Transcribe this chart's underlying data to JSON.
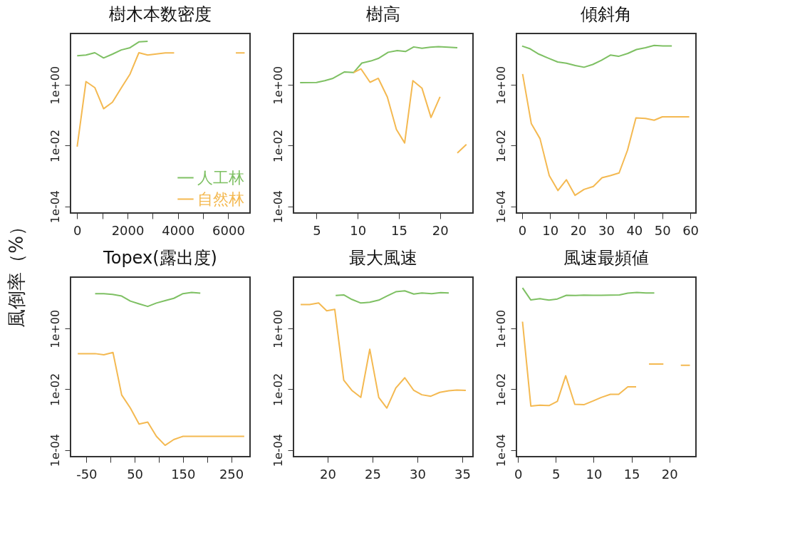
{
  "chart_data": [
    {
      "type": "line",
      "title": "樹木本数密度",
      "ylabel": "風倒率（%）",
      "log": "y",
      "grid": false,
      "legend": "bottom right",
      "xlim": [
        -264,
        6864
      ],
      "ylim": [
        6e-05,
        50
      ],
      "xticks": [
        0,
        {
          "value": 1000,
          "label": null
        },
        2000,
        {
          "value": 3000,
          "label": null
        },
        4000,
        {
          "value": 5000,
          "label": null
        },
        6000
      ],
      "yticks": [
        {
          "value": 0.0001,
          "label": "1e-04"
        },
        {
          "value": 0.01,
          "label": "1e-02"
        },
        {
          "value": 1,
          "label": "1e+00"
        }
      ],
      "series": [
        {
          "name": "人工林",
          "color": "#7ec063",
          "x": [
            0,
            350,
            700,
            1050,
            1400,
            1750,
            2100,
            2450,
            2800
          ],
          "values": [
            9.2,
            9.7,
            11.6,
            7.8,
            10.4,
            14.3,
            17,
            26.4,
            27.4
          ]
        },
        {
          "name": "自然林",
          "color": "#f4b951",
          "x": [
            0,
            350,
            700,
            1050,
            1400,
            1750,
            2100,
            2450,
            2800,
            3150,
            3500,
            3850,
            4200,
            6300,
            6650
          ],
          "values": [
            0.0092,
            1.3,
            0.82,
            0.165,
            0.27,
            0.8,
            2.3,
            11.6,
            9.7,
            10.6,
            11.4,
            11.4,
            null,
            11.4,
            11.4
          ]
        }
      ]
    },
    {
      "type": "line",
      "title": "樹高",
      "log": "y",
      "grid": false,
      "xlim": [
        2.2,
        24
      ],
      "ylim": [
        6e-05,
        50
      ],
      "xticks": [
        5,
        10,
        15,
        20
      ],
      "yticks": [
        {
          "value": 0.0001,
          "label": "1e-04"
        },
        {
          "value": 0.01,
          "label": "1e-02"
        },
        {
          "value": 1,
          "label": "1e+00"
        }
      ],
      "series": [
        {
          "color": "#7ec063",
          "x": [
            3.0,
            5.0,
            6.0,
            7.0,
            8.4,
            9.5,
            10.5,
            11.6,
            12.5,
            13.7,
            14.8,
            15.8,
            16.8,
            17.8,
            18.8,
            19.8,
            21.0,
            22.1
          ],
          "values": [
            1.19,
            1.21,
            1.39,
            1.66,
            2.7,
            2.57,
            5.3,
            6.2,
            7.5,
            12,
            13.6,
            12.7,
            18,
            16.2,
            17.7,
            18.3,
            17.7,
            17
          ]
        },
        {
          "color": "#f4b951",
          "x": [
            9.5,
            10.4,
            11.5,
            12.5,
            13.6,
            14.7,
            15.7,
            16.7,
            17.8,
            18.9,
            20.0,
            21.0,
            22.1,
            23.2
          ],
          "values": [
            2.57,
            3.4,
            1.23,
            1.66,
            0.4,
            0.034,
            0.0123,
            1.39,
            0.79,
            0.085,
            0.41,
            null,
            0.0057,
            0.011
          ]
        }
      ]
    },
    {
      "type": "line",
      "title": "傾斜角",
      "log": "y",
      "grid": false,
      "xlim": [
        -2,
        62
      ],
      "ylim": [
        6e-05,
        50
      ],
      "xticks": [
        0,
        10,
        20,
        30,
        40,
        50,
        60
      ],
      "yticks": [
        {
          "value": 0.0001,
          "label": "1e-04"
        },
        {
          "value": 0.01,
          "label": "1e-02"
        },
        {
          "value": 1,
          "label": "1e+00"
        }
      ],
      "series": [
        {
          "color": "#7ec063",
          "x": [
            0,
            2.9,
            6,
            9.2,
            12.7,
            15.8,
            19,
            22.1,
            25.2,
            28.3,
            31.5,
            34.4,
            37.7,
            40.8,
            44,
            47.1,
            50.2,
            53.4
          ],
          "values": [
            19.3,
            15.6,
            10.4,
            7.8,
            5.75,
            5.2,
            4.4,
            3.85,
            4.75,
            6.5,
            9.7,
            8.8,
            11,
            14.8,
            17,
            20.3,
            19.3,
            19.3
          ]
        },
        {
          "color": "#f4b951",
          "x": [
            0.2,
            3.3,
            6.4,
            9.7,
            12.8,
            15.8,
            18.9,
            22.1,
            25.4,
            28.5,
            31.5,
            34.6,
            37.6,
            40.6,
            44,
            47.1,
            50,
            53.4,
            59.6
          ],
          "values": [
            2.3,
            0.053,
            0.017,
            0.00103,
            0.00033,
            0.00075,
            0.00023,
            0.00036,
            0.00045,
            0.00087,
            0.00103,
            0.00126,
            0.0071,
            0.082,
            0.079,
            0.069,
            0.089,
            0.089,
            0.089
          ]
        }
      ]
    },
    {
      "type": "line",
      "title": "Topex(露出度)",
      "log": "y",
      "grid": false,
      "xlim": [
        -83,
        289
      ],
      "ylim": [
        6e-05,
        50
      ],
      "xticks": [
        -50,
        {
          "value": 0,
          "label": null
        },
        50,
        {
          "value": 100,
          "label": null
        },
        150,
        {
          "value": 200,
          "label": null
        },
        250
      ],
      "yticks": [
        {
          "value": 0.0001,
          "label": "1e-04"
        },
        {
          "value": 0.01,
          "label": "1e-02"
        },
        {
          "value": 1,
          "label": "1e+00"
        }
      ],
      "series": [
        {
          "color": "#7ec063",
          "x": [
            -32,
            -14,
            4,
            23,
            41,
            59,
            77,
            95,
            113,
            131,
            150,
            168,
            186
          ],
          "values": [
            14.3,
            14.3,
            13.5,
            11.9,
            8.1,
            6.6,
            5.4,
            7.0,
            8.4,
            10,
            14.3,
            15.6,
            14.8
          ]
        },
        {
          "color": "#f4b951",
          "x": [
            -68,
            -50,
            -32,
            -14,
            5,
            23,
            41,
            59,
            77,
            95,
            113,
            131,
            150,
            186,
            222,
            258,
            277
          ],
          "values": [
            0.15,
            0.15,
            0.15,
            0.138,
            0.164,
            0.0065,
            0.0024,
            0.00071,
            0.00083,
            0.00028,
            0.000142,
            0.00022,
            0.00028,
            0.00028,
            0.00028,
            0.00028,
            0.00028
          ]
        }
      ]
    },
    {
      "type": "line",
      "title": "最大風速",
      "log": "y",
      "grid": false,
      "xlim": [
        16.2,
        36.2
      ],
      "ylim": [
        6e-05,
        50
      ],
      "xticks": [
        20,
        25,
        30,
        35
      ],
      "yticks": [
        {
          "value": 0.0001,
          "label": "1e-04"
        },
        {
          "value": 0.01,
          "label": "1e-02"
        },
        {
          "value": 1,
          "label": "1e+00"
        }
      ],
      "series": [
        {
          "color": "#7ec063",
          "x": [
            20.9,
            21.8,
            22.7,
            23.7,
            24.7,
            25.7,
            26.6,
            27.6,
            28.6,
            29.6,
            30.5,
            31.6,
            32.6,
            33.5
          ],
          "values": [
            12.4,
            13,
            9.2,
            7.0,
            7.4,
            8.7,
            11.9,
            16.4,
            17.6,
            13.8,
            15,
            14.3,
            15.5,
            15
          ]
        },
        {
          "color": "#f4b951",
          "x": [
            17.0,
            18.0,
            19.0,
            19.9,
            20.8,
            21.8,
            22.7,
            23.7,
            24.7,
            25.7,
            26.6,
            27.6,
            28.6,
            29.6,
            30.5,
            31.5,
            32.5,
            33.5,
            34.4,
            35.4
          ],
          "values": [
            6.2,
            6.2,
            7.0,
            3.9,
            4.3,
            0.02,
            0.0092,
            0.0054,
            0.21,
            0.0054,
            0.0024,
            0.011,
            0.024,
            0.0092,
            0.0066,
            0.0059,
            0.0079,
            0.0089,
            0.0095,
            0.0092
          ]
        }
      ]
    },
    {
      "type": "line",
      "title": "風速最頻値",
      "log": "y",
      "grid": false,
      "xlim": [
        -0.2,
        23.5
      ],
      "ylim": [
        6e-05,
        50
      ],
      "xticks": [
        0,
        5,
        10,
        15,
        20
      ],
      "yticks": [
        {
          "value": 0.0001,
          "label": "1e-04"
        },
        {
          "value": 0.01,
          "label": "1e-02"
        },
        {
          "value": 1,
          "label": "1e+00"
        }
      ],
      "series": [
        {
          "color": "#7ec063",
          "x": [
            0.6,
            1.7,
            2.9,
            4.1,
            5.2,
            6.4,
            7.6,
            8.7,
            9.9,
            11,
            12.2,
            13.4,
            14.5,
            15.7,
            16.9,
            18.0
          ],
          "values": [
            22,
            8.8,
            9.7,
            8.7,
            9.5,
            12.6,
            12.4,
            12.8,
            12.6,
            12.6,
            12.8,
            13,
            14.8,
            15.6,
            15,
            15
          ]
        },
        {
          "color": "#f4b951",
          "x": [
            0.6,
            1.7,
            2.9,
            4.1,
            5.2,
            6.3,
            7.5,
            8.7,
            9.9,
            11,
            12.2,
            13.3,
            14.5,
            15.6,
            16.5,
            17.3,
            19.2,
            20.4,
            21.5,
            22.7
          ],
          "values": [
            1.7,
            0.0028,
            0.003,
            0.0029,
            0.004,
            0.028,
            0.0032,
            0.0031,
            0.0041,
            0.0054,
            0.0068,
            0.0068,
            0.012,
            0.012,
            null,
            0.068,
            0.068,
            null,
            0.062,
            0.062
          ]
        }
      ]
    }
  ]
}
